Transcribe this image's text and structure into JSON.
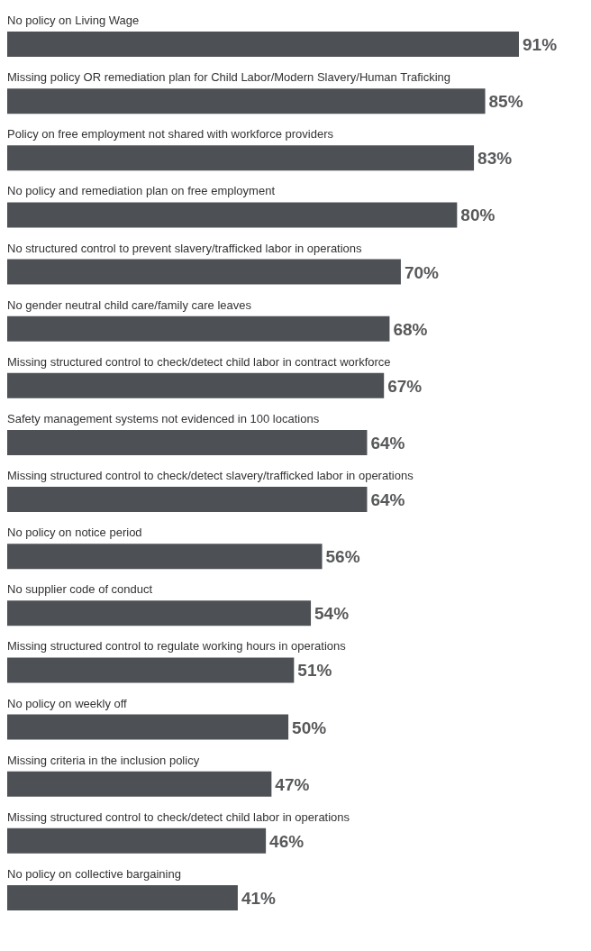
{
  "chart_data": {
    "type": "bar",
    "orientation": "horizontal",
    "data_labels": true,
    "color": "#4d5054",
    "categories": [
      "No policy on Living Wage",
      "Missing policy OR remediation plan for Child Labor/Modern Slavery/Human Traficking",
      "Policy on free employment not shared with workforce providers",
      "No policy and remediation plan on free employment",
      "No structured control to prevent slavery/trafficked labor in operations",
      "No gender neutral child care/family care leaves",
      "Missing structured control to check/detect child labor in contract workforce",
      "Safety management systems not evidenced in 100 locations",
      "Missing structured control to check/detect slavery/trafficked labor in operations",
      "No policy on notice period",
      "No supplier code of conduct",
      "Missing structured control to regulate working hours in operations",
      "No policy on weekly off",
      "Missing criteria in the inclusion policy",
      "Missing structured control to check/detect child labor in operations",
      "No policy on collective bargaining"
    ],
    "values": [
      91,
      85,
      83,
      80,
      70,
      68,
      67,
      64,
      64,
      56,
      54,
      51,
      50,
      47,
      46,
      41
    ],
    "value_labels": [
      "91%",
      "85%",
      "83%",
      "80%",
      "70%",
      "68%",
      "67%",
      "64%",
      "64%",
      "56%",
      "54%",
      "51%",
      "50%",
      "47%",
      "46%",
      "41%"
    ]
  }
}
